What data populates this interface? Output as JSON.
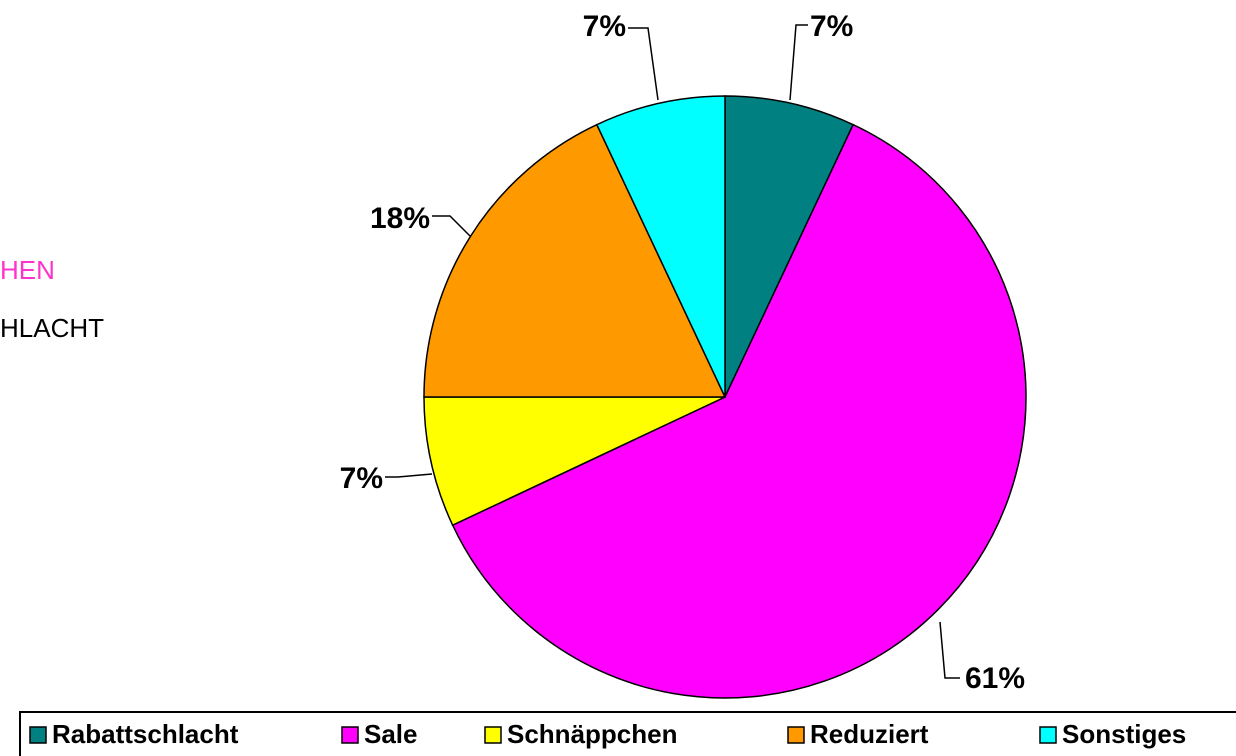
{
  "chart_data": {
    "type": "pie",
    "side_texts": [
      "HEN",
      "HLACHT"
    ],
    "categories": [
      "Rabattschlacht",
      "Sale",
      "Schnäppchen",
      "Reduziert",
      "Sonstiges"
    ],
    "values": [
      7,
      61,
      7,
      18,
      7
    ],
    "value_labels": [
      "7%",
      "61%",
      "7%",
      "18%",
      "7%"
    ],
    "colors": [
      "#008080",
      "#FF00FF",
      "#FFFF00",
      "#FF9900",
      "#00FFFF"
    ],
    "legend": "bottom"
  }
}
